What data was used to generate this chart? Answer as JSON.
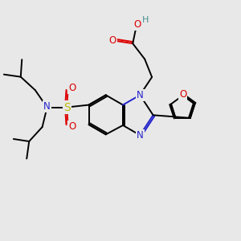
{
  "background_color": "#e8e8e8",
  "figsize": [
    3.0,
    3.0
  ],
  "dpi": 100,
  "atom_colors": {
    "C": "#000000",
    "N": "#2222cc",
    "O": "#dd0000",
    "S": "#bbbb00",
    "H": "#4a9090"
  },
  "bond_color": "#000000",
  "bond_width": 1.4,
  "font_size_atom": 8.5
}
